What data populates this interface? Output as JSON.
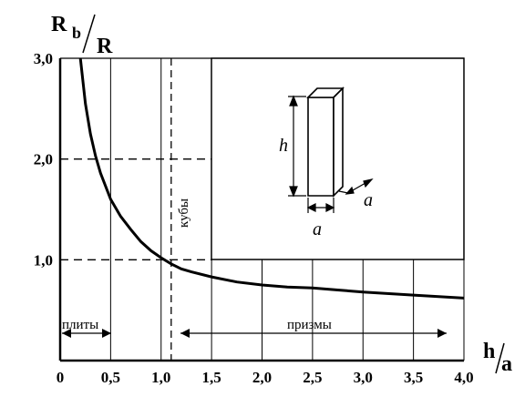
{
  "chart_data": {
    "type": "line",
    "y_axis_label": {
      "main": "R",
      "sub": "b",
      "denominator": "R"
    },
    "x_axis_label": {
      "main": "h",
      "denominator": "a"
    },
    "xlim": [
      0,
      4.0
    ],
    "ylim": [
      0,
      3.0
    ],
    "x_ticks": [
      "0",
      "0,5",
      "1,0",
      "1,5",
      "2,0",
      "2,5",
      "3,0",
      "3,5",
      "4,0"
    ],
    "y_ticks": [
      "3,0",
      "2,0",
      "1,0"
    ],
    "series": [
      {
        "x": [
          0.2,
          0.25,
          0.3,
          0.35,
          0.4,
          0.5,
          0.6,
          0.7,
          0.8,
          0.9,
          1.0,
          1.1,
          1.2,
          1.3,
          1.5,
          1.75,
          2.0,
          2.25,
          2.5,
          2.75,
          3.0,
          3.5,
          4.0
        ],
        "y": [
          3.0,
          2.55,
          2.25,
          2.03,
          1.86,
          1.6,
          1.43,
          1.3,
          1.18,
          1.09,
          1.02,
          0.96,
          0.91,
          0.88,
          0.83,
          0.78,
          0.75,
          0.73,
          0.72,
          0.7,
          0.68,
          0.65,
          0.62
        ]
      }
    ],
    "reference_lines": [
      {
        "orientation": "horizontal",
        "y": 2.0,
        "style": "dashed"
      },
      {
        "orientation": "horizontal",
        "y": 1.0,
        "style": "dashed"
      },
      {
        "orientation": "vertical",
        "x": 1.1,
        "style": "dashed"
      }
    ],
    "regions": [
      {
        "label": "плиты",
        "x_from": 0,
        "x_to": 0.5
      },
      {
        "label": "кубы",
        "x": 1.1,
        "orientation": "vertical"
      },
      {
        "label": "призмы",
        "x_from": 1.2,
        "x_to": 3.85
      }
    ],
    "inset": {
      "height_label": "h",
      "width_label": "a",
      "depth_label": "a"
    },
    "grid": true
  }
}
